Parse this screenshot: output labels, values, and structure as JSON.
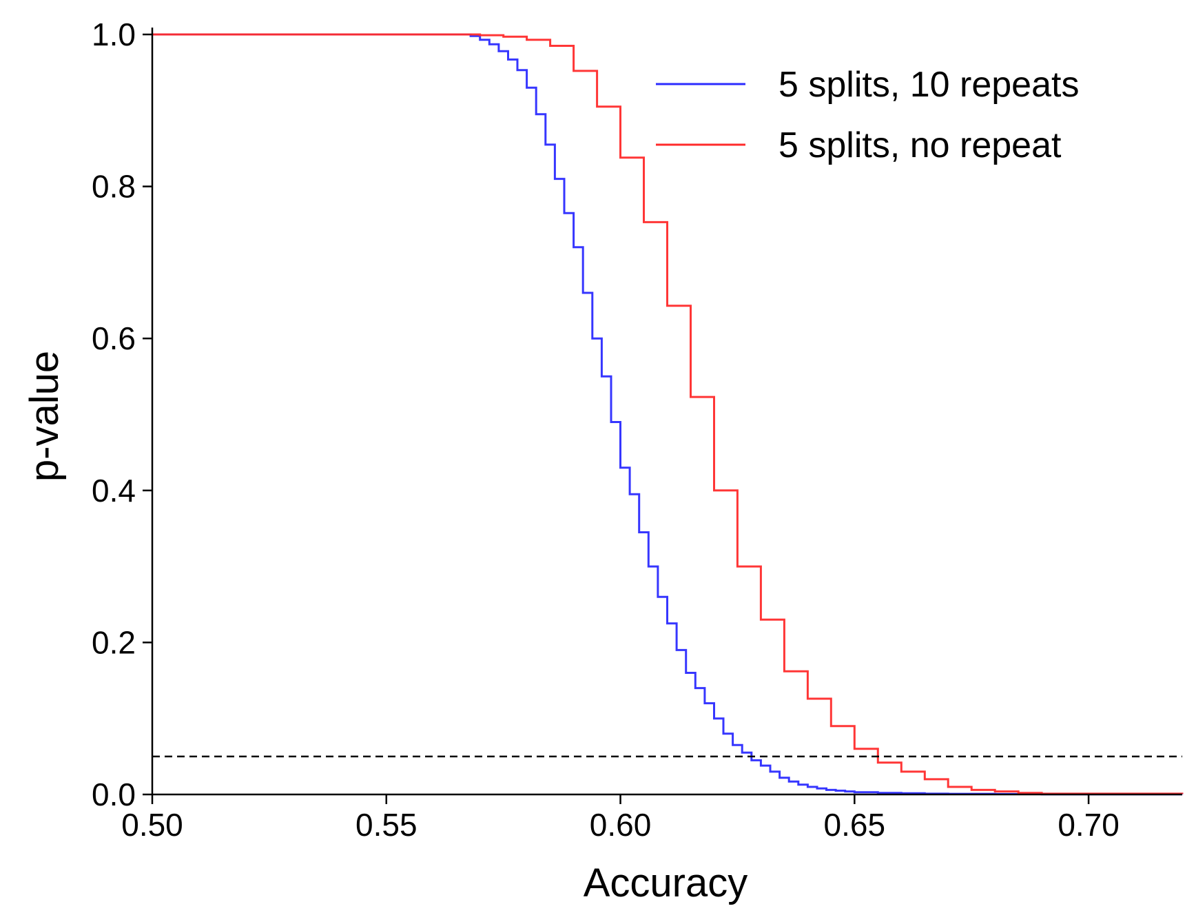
{
  "chart_data": {
    "type": "line",
    "xlabel": "Accuracy",
    "ylabel": "p-value",
    "xlim": [
      0.5,
      0.72
    ],
    "ylim": [
      0.0,
      1.0
    ],
    "x_ticks": [
      "0.50",
      "0.55",
      "0.60",
      "0.65",
      "0.70"
    ],
    "y_ticks": [
      "0.0",
      "0.2",
      "0.4",
      "0.6",
      "0.8",
      "1.0"
    ],
    "grid": false,
    "legend_position": "top-right",
    "reference_line": {
      "y": 0.05,
      "style": "dashed",
      "color": "#000000"
    },
    "series": [
      {
        "name": "5 splits, 10 repeats",
        "color": "#2b2bff",
        "shape": "step",
        "x": [
          0.5,
          0.566,
          0.568,
          0.57,
          0.572,
          0.574,
          0.576,
          0.578,
          0.58,
          0.582,
          0.584,
          0.586,
          0.588,
          0.59,
          0.592,
          0.594,
          0.596,
          0.598,
          0.6,
          0.602,
          0.604,
          0.606,
          0.608,
          0.61,
          0.612,
          0.614,
          0.616,
          0.618,
          0.62,
          0.622,
          0.624,
          0.626,
          0.628,
          0.63,
          0.632,
          0.634,
          0.636,
          0.638,
          0.64,
          0.642,
          0.644,
          0.646,
          0.648,
          0.65,
          0.655,
          0.66,
          0.665,
          0.67,
          0.68,
          0.69,
          0.72
        ],
        "values": [
          1.0,
          1.0,
          0.998,
          0.993,
          0.987,
          0.978,
          0.967,
          0.953,
          0.93,
          0.895,
          0.855,
          0.81,
          0.765,
          0.72,
          0.66,
          0.6,
          0.55,
          0.49,
          0.43,
          0.395,
          0.345,
          0.3,
          0.26,
          0.225,
          0.19,
          0.16,
          0.14,
          0.12,
          0.1,
          0.08,
          0.065,
          0.055,
          0.045,
          0.038,
          0.03,
          0.022,
          0.017,
          0.013,
          0.01,
          0.008,
          0.006,
          0.005,
          0.004,
          0.003,
          0.002,
          0.0015,
          0.001,
          0.0008,
          0.0005,
          0.0003,
          0.0002
        ]
      },
      {
        "name": "5 splits, no repeat",
        "color": "#ff2b2b",
        "shape": "step",
        "x": [
          0.5,
          0.565,
          0.57,
          0.575,
          0.58,
          0.585,
          0.59,
          0.595,
          0.6,
          0.605,
          0.61,
          0.615,
          0.62,
          0.625,
          0.63,
          0.635,
          0.64,
          0.645,
          0.65,
          0.655,
          0.66,
          0.665,
          0.67,
          0.675,
          0.68,
          0.685,
          0.69,
          0.72
        ],
        "values": [
          1.0,
          1.0,
          0.999,
          0.997,
          0.993,
          0.985,
          0.952,
          0.905,
          0.838,
          0.753,
          0.643,
          0.523,
          0.4,
          0.3,
          0.23,
          0.162,
          0.126,
          0.09,
          0.06,
          0.042,
          0.03,
          0.02,
          0.01,
          0.006,
          0.004,
          0.002,
          0.001,
          0.0005
        ]
      }
    ]
  }
}
